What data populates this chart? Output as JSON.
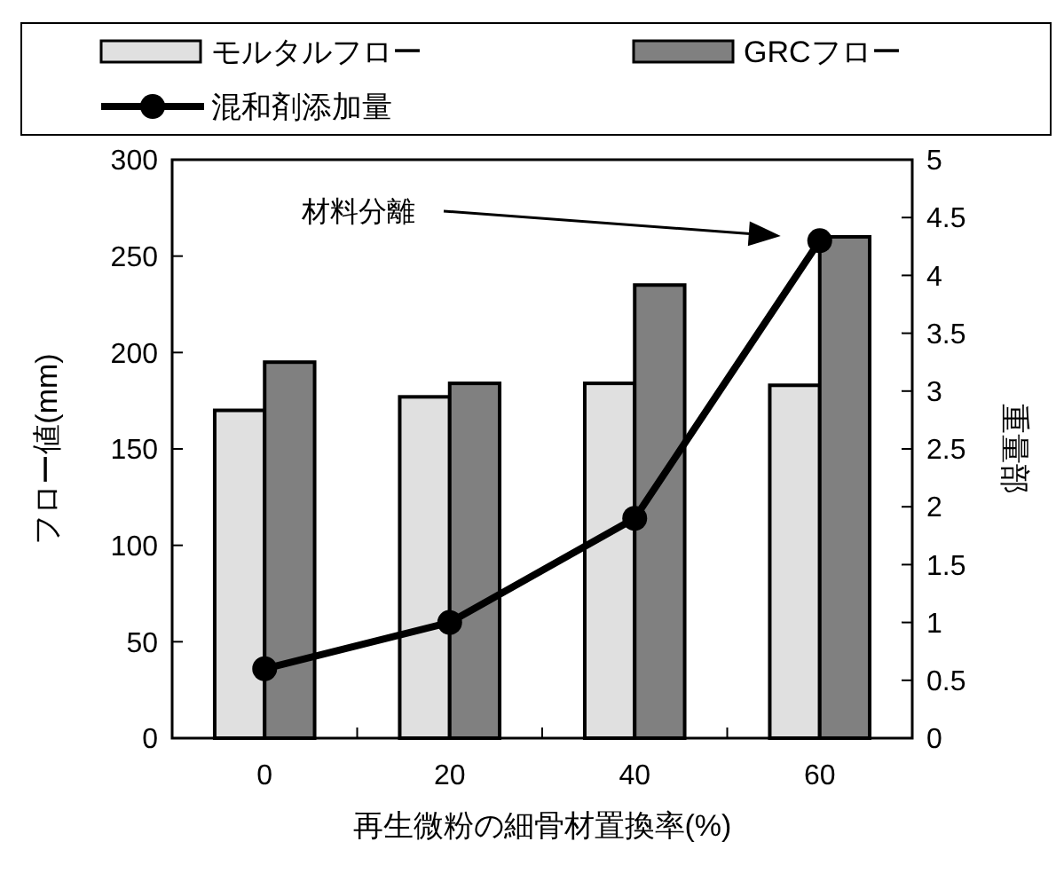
{
  "chart_data": {
    "type": "bar",
    "categories": [
      "0",
      "20",
      "40",
      "60"
    ],
    "xlabel": "再生微粉の細骨材置換率(%)",
    "ylabel": "フロー値(mm)",
    "y2label": "重量部",
    "series": [
      {
        "name": "モルタルフロー",
        "color": "#e0e0e0",
        "values": [
          170,
          177,
          184,
          183
        ]
      },
      {
        "name": "GRCフロー",
        "color": "#808080",
        "values": [
          195,
          184,
          235,
          260
        ]
      },
      {
        "name": "混和剤添加量",
        "type": "line",
        "axis": "y2",
        "color": "#000000",
        "marker": "circle",
        "values": [
          0.6,
          1.0,
          1.9,
          4.3
        ]
      }
    ],
    "ylim": [
      0,
      300
    ],
    "yticks": [
      0,
      50,
      100,
      150,
      200,
      250,
      300
    ],
    "y2lim": [
      0,
      5
    ],
    "y2ticks": [
      0,
      0.5,
      1,
      1.5,
      2,
      2.5,
      3,
      3.5,
      4,
      4.5,
      5
    ],
    "annotations": [
      "材料分離"
    ],
    "legend": "top",
    "grid": false
  }
}
